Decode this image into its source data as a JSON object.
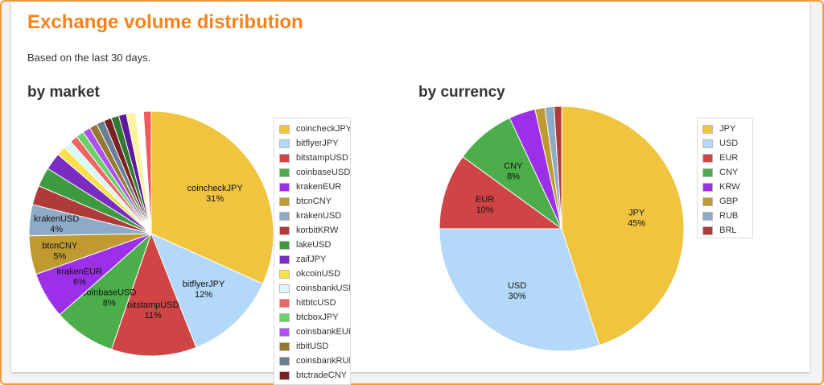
{
  "header": {
    "title": "Exchange volume distribution",
    "subtitle": "Based on the last 30 days."
  },
  "chart_data": [
    {
      "type": "pie",
      "title": "by market",
      "legend_position": "right",
      "series": [
        {
          "name": "coincheckJPY",
          "value": 31,
          "color": "#f0c43e",
          "label": "31%"
        },
        {
          "name": "bitflyerJPY",
          "value": 12,
          "color": "#b3d8f8",
          "label": "12%"
        },
        {
          "name": "bitstampUSD",
          "value": 11,
          "color": "#cf4444",
          "label": "11%"
        },
        {
          "name": "coinbaseUSD",
          "value": 8,
          "color": "#4bae4b",
          "label": "8%"
        },
        {
          "name": "krakenEUR",
          "value": 6,
          "color": "#9b30e8",
          "label": "6%"
        },
        {
          "name": "btcnCNY",
          "value": 5,
          "color": "#bf9a30",
          "label": "5%"
        },
        {
          "name": "krakenUSD",
          "value": 4,
          "color": "#8dabc6",
          "label": "4%"
        },
        {
          "name": "korbitKRW",
          "value": 2.5,
          "color": "#ae3a3a",
          "label": ""
        },
        {
          "name": "lakeUSD",
          "value": 2.5,
          "color": "#3e9a3e",
          "label": ""
        },
        {
          "name": "zaifJPY",
          "value": 2.2,
          "color": "#7a2bc0",
          "label": ""
        },
        {
          "name": "okcoinUSD",
          "value": 1.2,
          "color": "#f9e04a",
          "label": ""
        },
        {
          "name": "coinsbankUSD",
          "value": 1.1,
          "color": "#d9f6f8",
          "label": ""
        },
        {
          "name": "hitbtcUSD",
          "value": 1,
          "color": "#f06464",
          "label": ""
        },
        {
          "name": "btcboxJPY",
          "value": 1,
          "color": "#6ad06a",
          "label": ""
        },
        {
          "name": "coinsbankEUR",
          "value": 1,
          "color": "#ad52f0",
          "label": ""
        },
        {
          "name": "itbitUSD",
          "value": 1,
          "color": "#94782e",
          "label": ""
        },
        {
          "name": "coinsbankRUB",
          "value": 1,
          "color": "#6a7f94",
          "label": ""
        },
        {
          "name": "btctradeCNY",
          "value": 1,
          "color": "#7a2222",
          "label": ""
        },
        {
          "name": "",
          "value": 1,
          "color": "#2f7a2f",
          "label": ""
        },
        {
          "name": "",
          "value": 1,
          "color": "#5a1a9a",
          "label": ""
        },
        {
          "name": "",
          "value": 1.2,
          "color": "#fbf3a0",
          "label": ""
        },
        {
          "name": "",
          "value": 1,
          "color": "#ffffff",
          "label": ""
        },
        {
          "name": "",
          "value": 1,
          "color": "#f05a5a",
          "label": ""
        }
      ]
    },
    {
      "type": "pie",
      "title": "by currency",
      "legend_position": "right",
      "series": [
        {
          "name": "JPY",
          "value": 45,
          "color": "#f0c43e",
          "label": "45%"
        },
        {
          "name": "USD",
          "value": 30,
          "color": "#b3d8f8",
          "label": "30%"
        },
        {
          "name": "EUR",
          "value": 10,
          "color": "#cf4444",
          "label": "10%"
        },
        {
          "name": "CNY",
          "value": 8,
          "color": "#4bae4b",
          "label": "8%"
        },
        {
          "name": "KRW",
          "value": 3.5,
          "color": "#9b30e8",
          "label": ""
        },
        {
          "name": "GBP",
          "value": 1.3,
          "color": "#bf9a30",
          "label": ""
        },
        {
          "name": "RUB",
          "value": 1.2,
          "color": "#8dabc6",
          "label": ""
        },
        {
          "name": "BRL",
          "value": 1,
          "color": "#ae3a3a",
          "label": ""
        }
      ]
    }
  ]
}
